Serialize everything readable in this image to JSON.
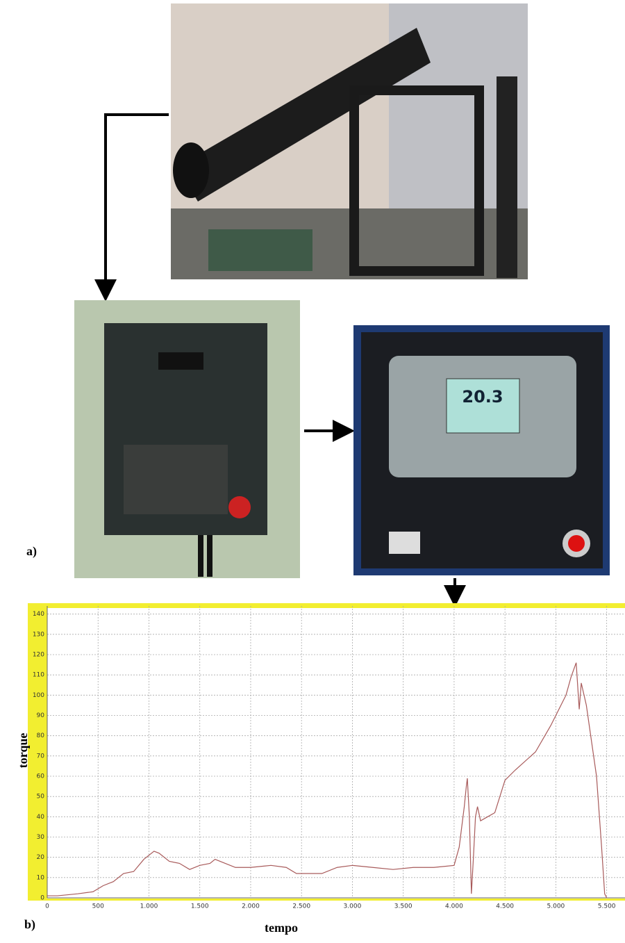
{
  "chart_data": {
    "type": "line",
    "xlabel": "tempo",
    "ylabel": "torque",
    "x": [
      0,
      100,
      300,
      450,
      550,
      650,
      750,
      850,
      950,
      1050,
      1100,
      1200,
      1300,
      1400,
      1500,
      1600,
      1650,
      1750,
      1850,
      2000,
      2200,
      2350,
      2450,
      2550,
      2700,
      2850,
      3000,
      3200,
      3400,
      3600,
      3800,
      4000,
      4050,
      4100,
      4120,
      4130,
      4150,
      4170,
      4190,
      4210,
      4230,
      4260,
      4330,
      4400,
      4500,
      4600,
      4800,
      4950,
      5100,
      5150,
      5200,
      5230,
      5250,
      5300,
      5400,
      5450,
      5480,
      5500
    ],
    "series": [
      {
        "color": "#a85a5a",
        "values": [
          1,
          1,
          2,
          3,
          6,
          8,
          12,
          13,
          19,
          23,
          22,
          18,
          17,
          14,
          16,
          17,
          19,
          17,
          15,
          15,
          16,
          15,
          12,
          12,
          12,
          15,
          16,
          15,
          14,
          15,
          15,
          16,
          25,
          45,
          55,
          59,
          40,
          2,
          20,
          40,
          45,
          38,
          40,
          42,
          58,
          63,
          72,
          85,
          100,
          109,
          116,
          93,
          106,
          95,
          60,
          25,
          2,
          0
        ]
      }
    ],
    "xlim": [
      0,
      5680
    ],
    "ylim": [
      0,
      144
    ],
    "xticks": [
      0,
      500,
      {
        "value": 1000,
        "label": "1.000"
      },
      {
        "value": 1500,
        "label": "1.500"
      },
      {
        "value": 2000,
        "label": "2.000"
      },
      {
        "value": 2500,
        "label": "2.500"
      },
      {
        "value": 3000,
        "label": "3.000"
      },
      {
        "value": 3500,
        "label": "3.500"
      },
      {
        "value": 4000,
        "label": "4.000"
      },
      {
        "value": 4500,
        "label": "4.500"
      },
      {
        "value": 5000,
        "label": "5.000"
      },
      {
        "value": 5500,
        "label": "5.500"
      }
    ],
    "yticks": [
      0,
      10,
      20,
      30,
      40,
      50,
      60,
      70,
      80,
      90,
      100,
      110,
      120,
      130,
      140
    ],
    "grid": true
  },
  "labels": {
    "panel_a": "a)",
    "panel_b": "b)",
    "display_reading": "20.3"
  }
}
